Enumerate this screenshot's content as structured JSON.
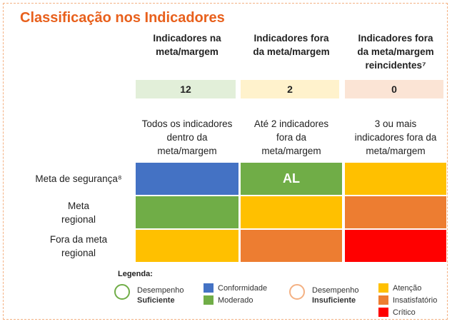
{
  "header": {
    "title": "Classificação nos Indicadores"
  },
  "columns": [
    {
      "heading": [
        "Indicadores na",
        "meta/margem"
      ],
      "count": "12",
      "count_color": "#e2efd9",
      "description": [
        "Todos os indicadores",
        "dentro da",
        "meta/margem"
      ]
    },
    {
      "heading": [
        "Indicadores fora",
        "da meta/margem"
      ],
      "count": "2",
      "count_color": "#fff2cc",
      "description": [
        "Até 2 indicadores",
        "fora da",
        "meta/margem"
      ]
    },
    {
      "heading": [
        "Indicadores fora",
        "da meta/margem",
        "reincidentes⁷"
      ],
      "count": "0",
      "count_color": "#fbe4d5",
      "description": [
        "3 ou mais",
        "indicadores fora da",
        "meta/margem"
      ]
    }
  ],
  "rows": [
    {
      "label": [
        "Meta de segurança⁸"
      ],
      "cells": [
        {
          "color": "#4472c4"
        },
        {
          "color": "#70ad47",
          "text": "AL"
        },
        {
          "color": "#ffc000"
        }
      ]
    },
    {
      "label": [
        "Meta",
        "regional"
      ],
      "cells": [
        {
          "color": "#70ad47"
        },
        {
          "color": "#ffc000"
        },
        {
          "color": "#ed7d31"
        }
      ]
    },
    {
      "label": [
        "Fora da meta",
        "regional"
      ],
      "cells": [
        {
          "color": "#ffc000"
        },
        {
          "color": "#ed7d31"
        },
        {
          "color": "#ff0000"
        }
      ]
    }
  ],
  "legend": {
    "title": "Legenda:",
    "groups": [
      {
        "label": [
          "Desempenho",
          "Suficiente"
        ],
        "icon_color": "#70ad47",
        "items": [
          {
            "color": "#4472c4",
            "label": "Conformidade"
          },
          {
            "color": "#70ad47",
            "label": "Moderado"
          }
        ]
      },
      {
        "label": [
          "Desempenho",
          "Insuficiente"
        ],
        "icon_color": "#f4b183",
        "items": [
          {
            "color": "#ffc000",
            "label": "Atenção"
          },
          {
            "color": "#ed7d31",
            "label": "Insatisfatório"
          },
          {
            "color": "#ff0000",
            "label": "Crítico"
          }
        ]
      }
    ]
  }
}
